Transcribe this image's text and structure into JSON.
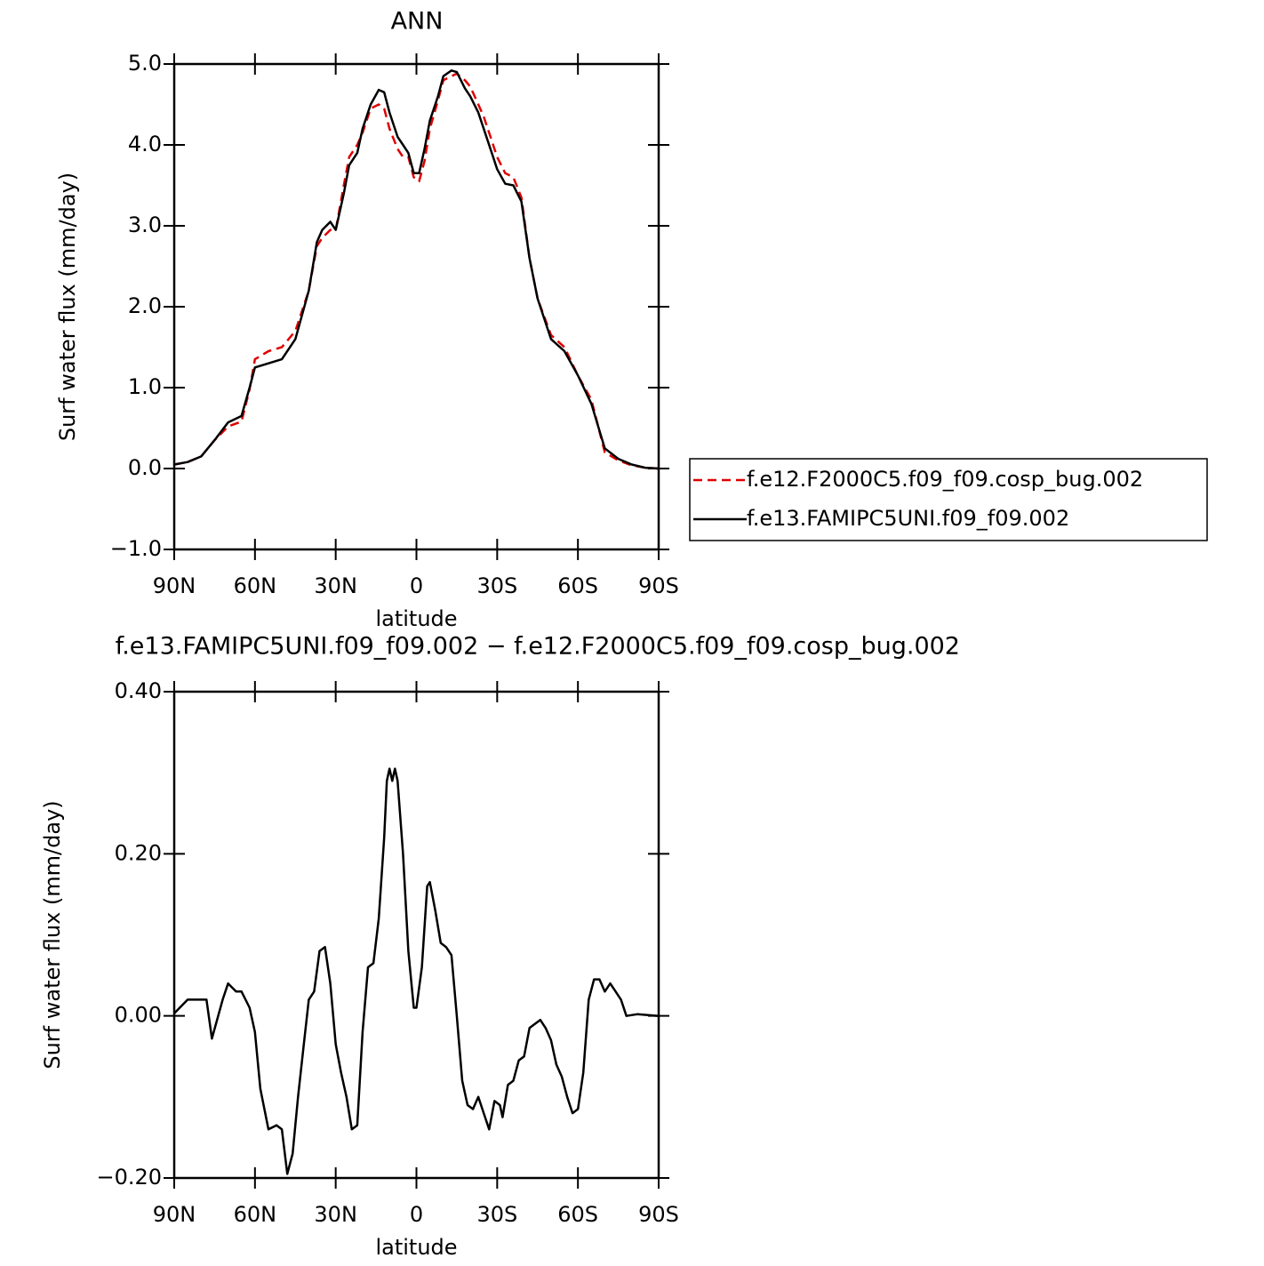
{
  "chart_data": [
    {
      "type": "line",
      "title": "ANN",
      "xlabel": "latitude",
      "ylabel": "Surf water flux (mm/day)",
      "x": [
        90,
        85,
        80,
        75,
        70,
        65,
        62,
        60,
        55,
        50,
        45,
        40,
        37,
        35,
        32,
        30,
        27,
        25,
        22,
        20,
        17,
        14,
        12,
        10,
        7,
        5,
        3,
        1,
        -1,
        -3,
        -5,
        -8,
        -10,
        -13,
        -15,
        -18,
        -20,
        -23,
        -25,
        -28,
        -30,
        -33,
        -36,
        -39,
        -42,
        -45,
        -50,
        -55,
        -60,
        -65,
        -70,
        -75,
        -80,
        -85,
        -90
      ],
      "series": [
        {
          "name": "f.e12.F2000C5.f09_f09.cosp_bug.002",
          "color": "#e00000",
          "linestyle": "dashed",
          "values": [
            0.05,
            0.08,
            0.15,
            0.35,
            0.52,
            0.58,
            0.98,
            1.35,
            1.45,
            1.5,
            1.7,
            2.2,
            2.75,
            2.85,
            2.95,
            2.95,
            3.5,
            3.85,
            4.0,
            4.15,
            4.45,
            4.5,
            4.45,
            4.2,
            3.95,
            3.85,
            3.85,
            3.6,
            3.55,
            3.8,
            4.2,
            4.55,
            4.8,
            4.85,
            4.88,
            4.8,
            4.72,
            4.5,
            4.35,
            4.05,
            3.85,
            3.65,
            3.6,
            3.35,
            2.6,
            2.1,
            1.65,
            1.5,
            1.15,
            0.85,
            0.2,
            0.1,
            0.04,
            0.01,
            0.0
          ]
        },
        {
          "name": "f.e13.FAMIPC5UNI.f09_f09.002",
          "color": "#000000",
          "linestyle": "solid",
          "values": [
            0.05,
            0.08,
            0.15,
            0.35,
            0.57,
            0.65,
            1.0,
            1.25,
            1.3,
            1.35,
            1.6,
            2.2,
            2.8,
            2.95,
            3.05,
            2.95,
            3.4,
            3.75,
            3.9,
            4.2,
            4.5,
            4.68,
            4.65,
            4.4,
            4.1,
            4.0,
            3.9,
            3.65,
            3.65,
            3.95,
            4.3,
            4.6,
            4.85,
            4.92,
            4.9,
            4.7,
            4.6,
            4.4,
            4.2,
            3.9,
            3.7,
            3.52,
            3.5,
            3.3,
            2.6,
            2.1,
            1.6,
            1.45,
            1.15,
            0.8,
            0.25,
            0.12,
            0.05,
            0.01,
            0.0
          ]
        }
      ],
      "xlim": [
        90,
        -90
      ],
      "xticks": [
        {
          "value": 90,
          "label": "90N"
        },
        {
          "value": 60,
          "label": "60N"
        },
        {
          "value": 30,
          "label": "30N"
        },
        0,
        {
          "value": -30,
          "label": "30S"
        },
        {
          "value": -60,
          "label": "60S"
        },
        {
          "value": -90,
          "label": "90S"
        }
      ],
      "ylim": [
        -1,
        5
      ],
      "yticks": [
        {
          "value": -1,
          "label": "−1.0"
        },
        {
          "value": 0,
          "label": "0.0"
        },
        {
          "value": 1,
          "label": "1.0"
        },
        {
          "value": 2,
          "label": "2.0"
        },
        {
          "value": 3,
          "label": "3.0"
        },
        {
          "value": 4,
          "label": "4.0"
        },
        {
          "value": 5,
          "label": "5.0"
        }
      ],
      "grid": false,
      "legend": "right"
    },
    {
      "type": "line",
      "title": "f.e13.FAMIPC5UNI.f09_f09.002 − f.e12.F2000C5.f09_f09.cosp_bug.002",
      "xlabel": "latitude",
      "ylabel": "Surf water flux (mm/day)",
      "x": [
        90,
        85,
        80,
        78,
        76,
        72,
        70,
        67,
        65,
        62,
        60,
        58,
        55,
        52,
        50,
        48,
        46,
        44,
        42,
        40,
        38,
        36,
        34,
        32,
        30,
        28,
        26,
        24,
        22,
        20,
        18,
        16,
        14,
        12,
        11,
        10,
        9,
        8,
        7,
        5,
        3,
        1,
        0,
        -2,
        -4,
        -5,
        -7,
        -9,
        -11,
        -13,
        -15,
        -17,
        -19,
        -21,
        -23,
        -25,
        -27,
        -29,
        -31,
        -32,
        -34,
        -36,
        -38,
        -40,
        -42,
        -44,
        -46,
        -48,
        -50,
        -52,
        -54,
        -56,
        -58,
        -60,
        -62,
        -64,
        -66,
        -68,
        -70,
        -72,
        -74,
        -76,
        -78,
        -82,
        -86,
        -90
      ],
      "series": [
        {
          "color": "#000000",
          "linestyle": "solid",
          "values": [
            0.003,
            0.02,
            0.02,
            0.02,
            -0.028,
            0.02,
            0.04,
            0.03,
            0.03,
            0.01,
            -0.02,
            -0.09,
            -0.14,
            -0.135,
            -0.14,
            -0.195,
            -0.17,
            -0.1,
            -0.04,
            0.02,
            0.03,
            0.08,
            0.085,
            0.04,
            -0.035,
            -0.07,
            -0.1,
            -0.14,
            -0.135,
            -0.02,
            0.06,
            0.065,
            0.12,
            0.22,
            0.29,
            0.305,
            0.29,
            0.305,
            0.29,
            0.2,
            0.08,
            0.01,
            0.01,
            0.06,
            0.16,
            0.165,
            0.13,
            0.09,
            0.085,
            0.075,
            0.0,
            -0.08,
            -0.11,
            -0.115,
            -0.1,
            -0.12,
            -0.14,
            -0.105,
            -0.11,
            -0.125,
            -0.085,
            -0.08,
            -0.055,
            -0.05,
            -0.015,
            -0.01,
            -0.005,
            -0.015,
            -0.03,
            -0.06,
            -0.075,
            -0.1,
            -0.12,
            -0.115,
            -0.07,
            0.02,
            0.045,
            0.045,
            0.03,
            0.04,
            0.03,
            0.02,
            0.0,
            0.002,
            0.001,
            0.0
          ]
        }
      ],
      "xlim": [
        90,
        -90
      ],
      "xticks": [
        {
          "value": 90,
          "label": "90N"
        },
        {
          "value": 60,
          "label": "60N"
        },
        {
          "value": 30,
          "label": "30N"
        },
        0,
        {
          "value": -30,
          "label": "30S"
        },
        {
          "value": -60,
          "label": "60S"
        },
        {
          "value": -90,
          "label": "90S"
        }
      ],
      "ylim": [
        -0.2,
        0.4
      ],
      "yticks": [
        {
          "value": -0.2,
          "label": "−0.20"
        },
        {
          "value": 0,
          "label": "0.00"
        },
        {
          "value": 0.2,
          "label": "0.20"
        },
        {
          "value": 0.4,
          "label": "0.40"
        }
      ],
      "grid": false
    }
  ]
}
